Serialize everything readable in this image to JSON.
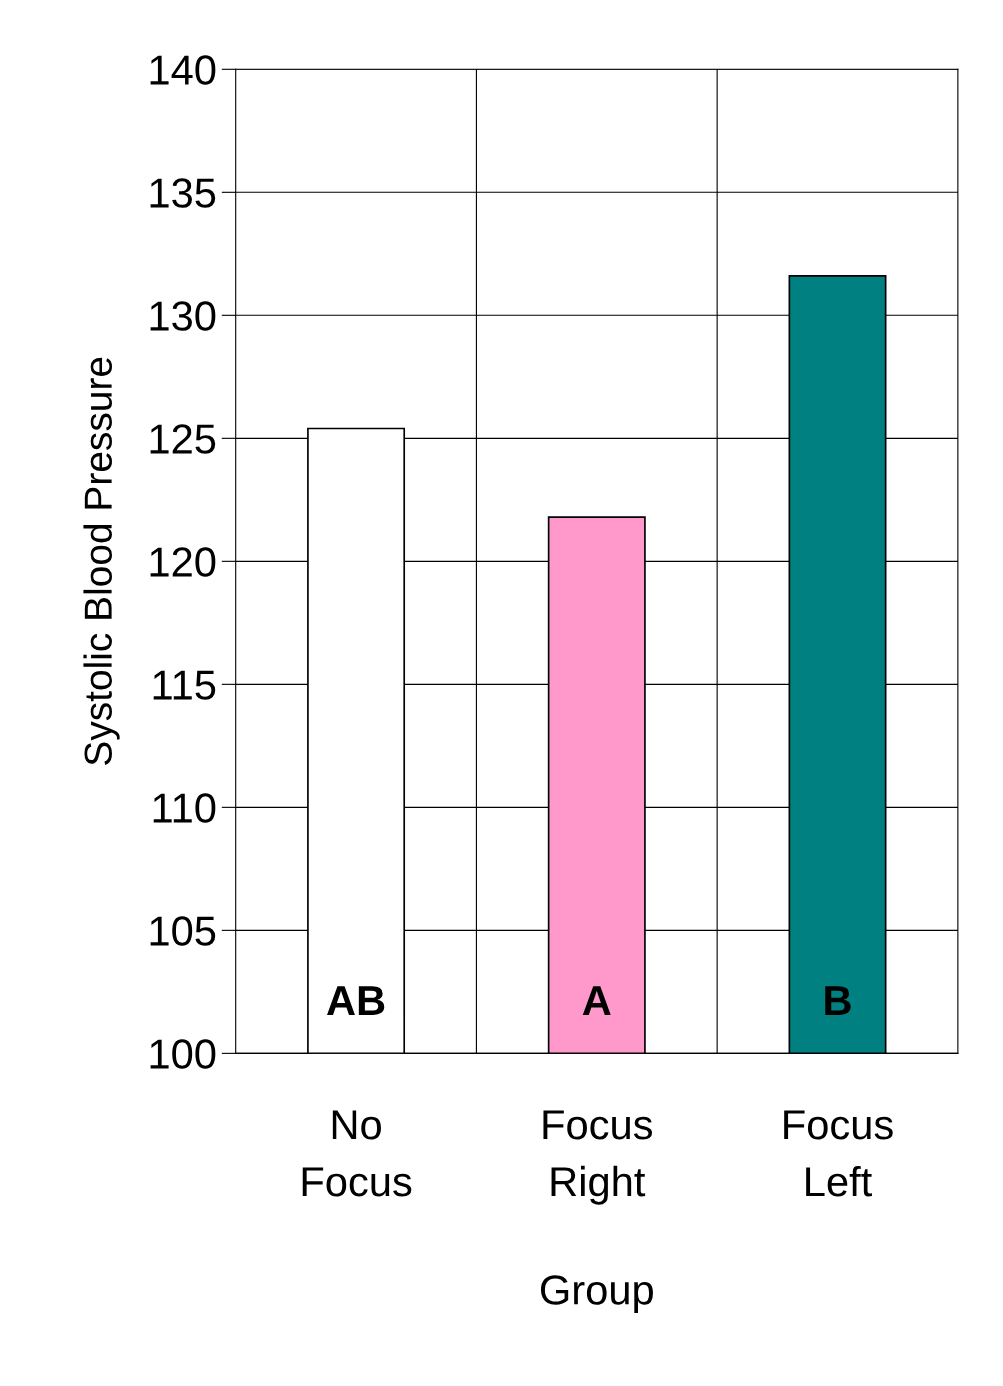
{
  "chart_data": {
    "type": "bar",
    "xlabel": "Group",
    "ylabel": "Systolic Blood Pressure",
    "categories": [
      "No\nFocus",
      "Focus\nRight",
      "Focus\nLeft"
    ],
    "values": [
      125.4,
      121.8,
      131.6
    ],
    "colors": [
      "#ffffff",
      "#ff99cc",
      "#008080"
    ],
    "ylim": [
      100,
      140
    ],
    "yticks": [
      100,
      105,
      110,
      115,
      120,
      125,
      130,
      135,
      140
    ],
    "grid": true,
    "annotations": [
      "AB",
      "A",
      "B"
    ]
  }
}
